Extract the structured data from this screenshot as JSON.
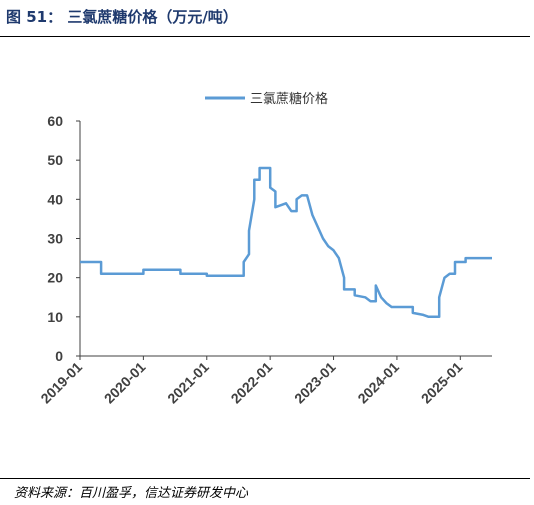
{
  "header": {
    "title": "图 51：  三氯蔗糖价格（万元/吨）"
  },
  "footer": {
    "source": "资料来源：百川盈孚，信达证券研发中心"
  },
  "colors": {
    "series": "#5b9bd5",
    "title": "#1f3a6e",
    "axis": "#404040"
  },
  "chart_data": {
    "type": "line",
    "title": "",
    "xlabel": "",
    "ylabel": "",
    "ylim": [
      0,
      60
    ],
    "yticks": [
      "0",
      "10",
      "20",
      "30",
      "40",
      "50",
      "60"
    ],
    "xlim": [
      "2019-01",
      "2025-07"
    ],
    "xticks": [
      "2019-01",
      "2020-01",
      "2021-01",
      "2022-01",
      "2023-01",
      "2024-01",
      "2025-01"
    ],
    "grid": false,
    "legend": "top-center",
    "series": [
      {
        "name": "三氯蔗糖价格",
        "color": "#5b9bd5",
        "points": [
          [
            "2019-01",
            24
          ],
          [
            "2019-05",
            24
          ],
          [
            "2019-05",
            21
          ],
          [
            "2020-01",
            21
          ],
          [
            "2020-01",
            22
          ],
          [
            "2020-08",
            22
          ],
          [
            "2020-08",
            21
          ],
          [
            "2021-01",
            21
          ],
          [
            "2021-01",
            20.5
          ],
          [
            "2021-08",
            20.5
          ],
          [
            "2021-08",
            24
          ],
          [
            "2021-09",
            26
          ],
          [
            "2021-09",
            32
          ],
          [
            "2021-10",
            40
          ],
          [
            "2021-10",
            45
          ],
          [
            "2021-11",
            45
          ],
          [
            "2021-11",
            48
          ],
          [
            "2022-01",
            48
          ],
          [
            "2022-01",
            43
          ],
          [
            "2022-02",
            42
          ],
          [
            "2022-02",
            38
          ],
          [
            "2022-04",
            39
          ],
          [
            "2022-05",
            37
          ],
          [
            "2022-06",
            37
          ],
          [
            "2022-06",
            40
          ],
          [
            "2022-07",
            41
          ],
          [
            "2022-08",
            41
          ],
          [
            "2022-09",
            36
          ],
          [
            "2022-10",
            33
          ],
          [
            "2022-11",
            30
          ],
          [
            "2022-12",
            28
          ],
          [
            "2023-01",
            27
          ],
          [
            "2023-02",
            25
          ],
          [
            "2023-03",
            20
          ],
          [
            "2023-03",
            17
          ],
          [
            "2023-05",
            17
          ],
          [
            "2023-05",
            15.5
          ],
          [
            "2023-07",
            15
          ],
          [
            "2023-08",
            14
          ],
          [
            "2023-09",
            14
          ],
          [
            "2023-09",
            18
          ],
          [
            "2023-10",
            15
          ],
          [
            "2023-11",
            13.5
          ],
          [
            "2023-12",
            12.5
          ],
          [
            "2024-04",
            12.5
          ],
          [
            "2024-04",
            11
          ],
          [
            "2024-06",
            10.5
          ],
          [
            "2024-07",
            10
          ],
          [
            "2024-09",
            10
          ],
          [
            "2024-09",
            15
          ],
          [
            "2024-10",
            20
          ],
          [
            "2024-11",
            21
          ],
          [
            "2024-12",
            21
          ],
          [
            "2024-12",
            24
          ],
          [
            "2025-02",
            24
          ],
          [
            "2025-02",
            25
          ],
          [
            "2025-07",
            25
          ]
        ]
      }
    ]
  }
}
